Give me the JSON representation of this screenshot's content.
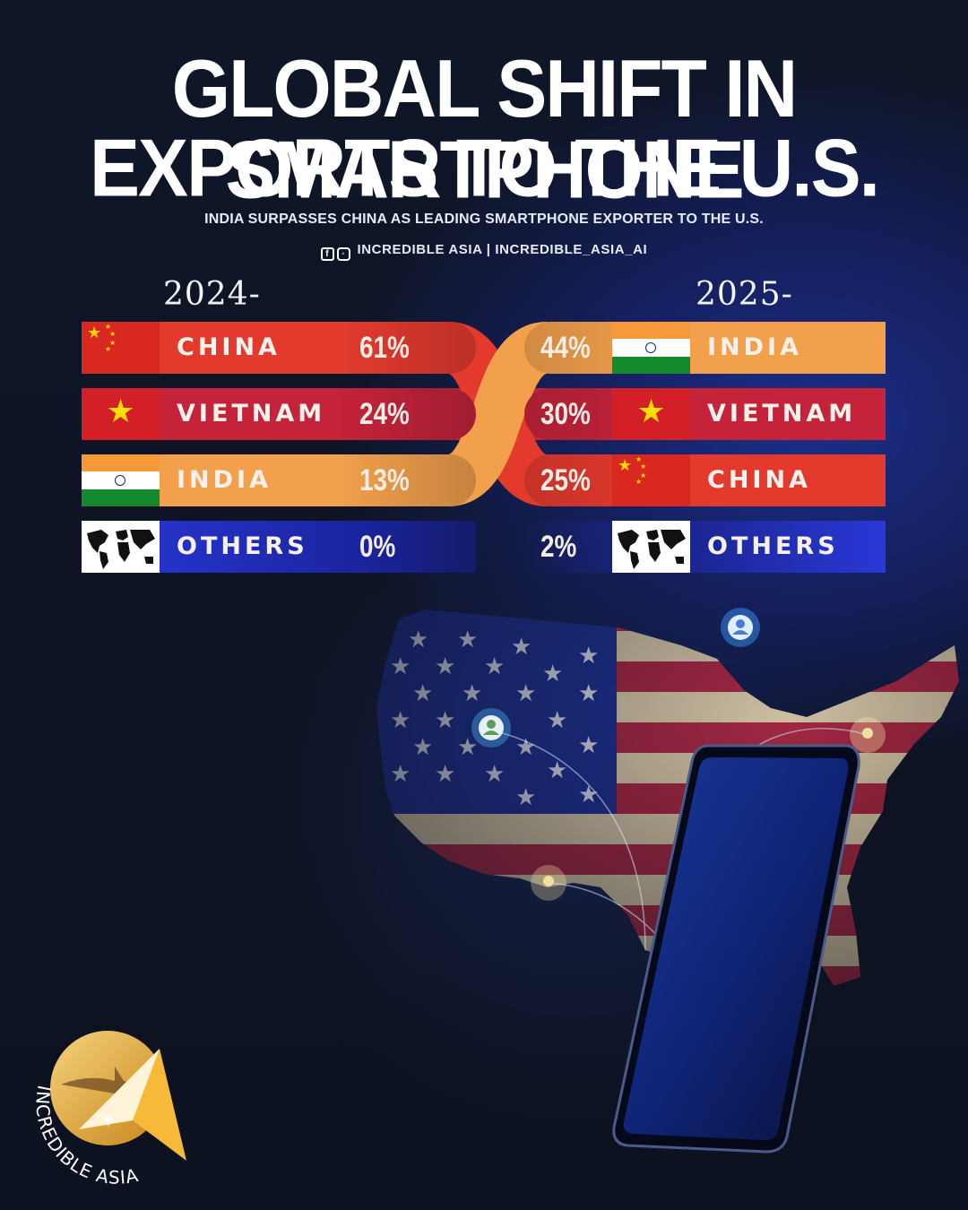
{
  "header": {
    "title_line1": "GLOBAL SHIFT IN SMARTPHONE",
    "title_line2": "EXPORTS TO THE U.S.",
    "subtitle": "INDIA SURPASSES CHINA AS LEADING SMARTPHONE EXPORTER TO THE U.S.",
    "social": "INCREDIBLE ASIA | INCREDIBLE_ASIA_AI",
    "social_icons": [
      "facebook-icon",
      "instagram-icon"
    ]
  },
  "chart_data": {
    "type": "bar",
    "title": "GLOBAL SHIFT IN SMARTPHONE EXPORTS TO THE U.S.",
    "series": [
      {
        "name": "2024-",
        "categories": [
          "CHINA",
          "VIETNAM",
          "INDIA",
          "OTHERS"
        ],
        "values": [
          61,
          24,
          13,
          0
        ],
        "labels": [
          "61%",
          "24%",
          "13%",
          "0%"
        ]
      },
      {
        "name": "2025-",
        "categories": [
          "INDIA",
          "VIETNAM",
          "CHINA",
          "OTHERS"
        ],
        "values": [
          44,
          30,
          25,
          2
        ],
        "labels": [
          "44%",
          "30%",
          "25%",
          "2%"
        ]
      }
    ]
  },
  "colors": {
    "china": "#e43a2e",
    "vietnam": "#c4233a",
    "india": "#f2a04c",
    "others": "#2733c8",
    "background": "#0d1220"
  },
  "brand": {
    "logo_text": "INCREDIBLE ASIA"
  }
}
